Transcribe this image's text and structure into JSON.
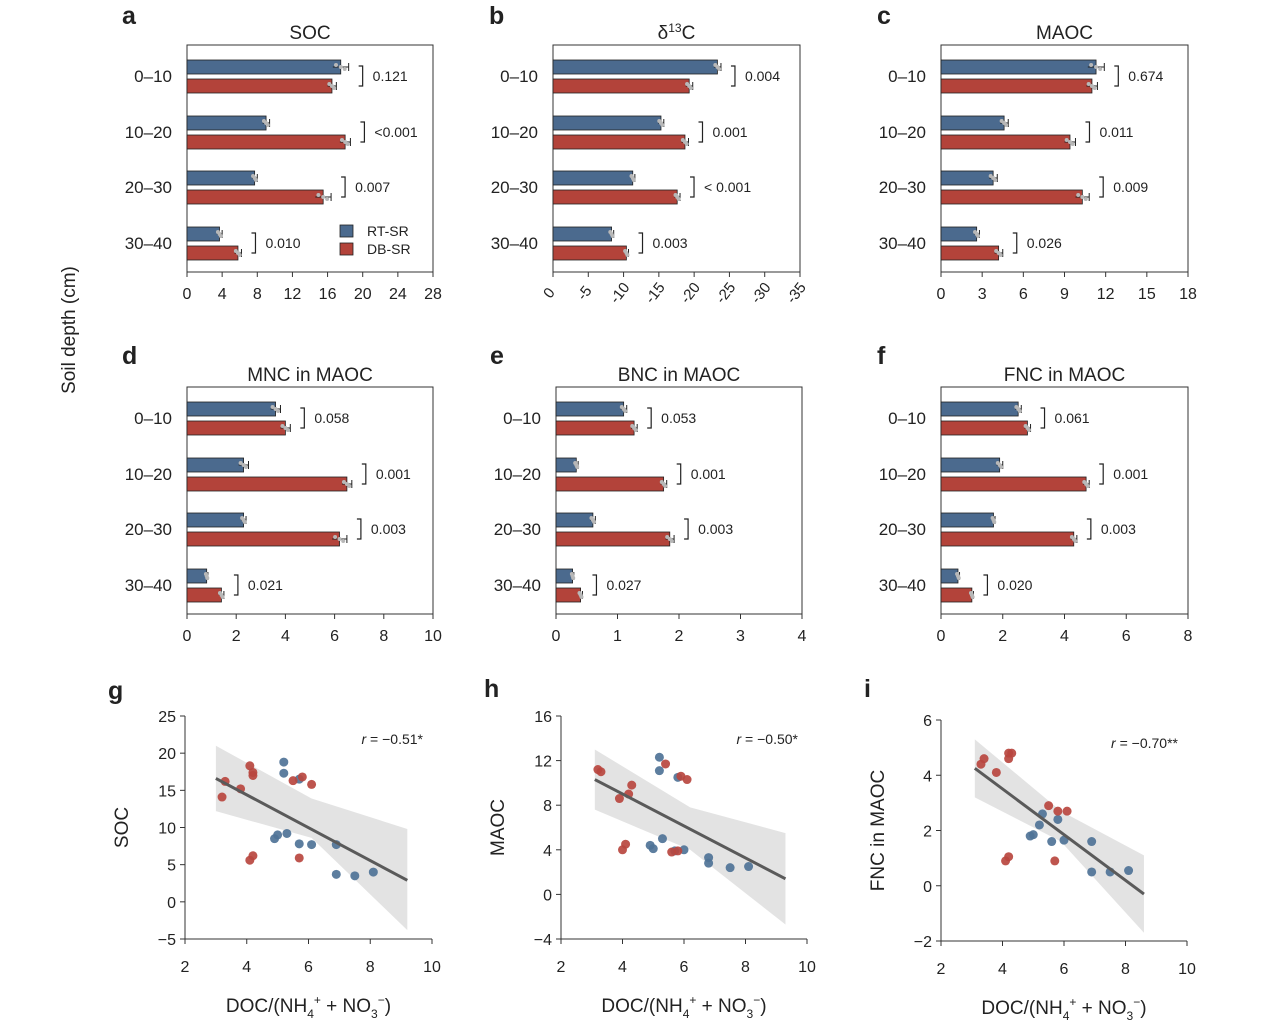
{
  "figure": {
    "y_axis_title": "Soil depth (cm)",
    "legend": [
      "RT-SR",
      "DB-SR"
    ],
    "colors": {
      "rt": "#4b6a8e",
      "db": "#b3433a",
      "rt_point": "#4f7397",
      "db_point": "#b9463f",
      "band": "#e3e3e3",
      "line": "#5a5a5a"
    }
  },
  "chart_data": [
    {
      "type": "bar",
      "panel": "a",
      "title": "SOC",
      "title_html": "SOC",
      "xlim": [
        0,
        28
      ],
      "xticks": [
        "0",
        "4",
        "8",
        "12",
        "16",
        "20",
        "24",
        "28"
      ],
      "rotated_ticks": false,
      "categories": [
        "0–10",
        "10–20",
        "20–30",
        "30–40"
      ],
      "series": [
        {
          "name": "RT-SR",
          "values": [
            17.5,
            9.0,
            7.7,
            3.7
          ],
          "errors": [
            0.9,
            0.4,
            0.3,
            0.3
          ]
        },
        {
          "name": "DB-SR",
          "values": [
            16.5,
            18.0,
            15.5,
            5.8
          ],
          "errors": [
            0.5,
            0.6,
            0.9,
            0.4
          ]
        }
      ],
      "p_values": [
        "0.121",
        "<0.001",
        "0.007",
        "0.010"
      ],
      "legend_location": "lower-right"
    },
    {
      "type": "bar",
      "panel": "b",
      "title": "δ13C",
      "title_html": "δ<tspan dy='-7' font-size='12'>13</tspan><tspan dy='7'>C</tspan>",
      "xlim": [
        0,
        -35
      ],
      "xticks": [
        "0",
        "-5",
        "-10",
        "-15",
        "-20",
        "-25",
        "-30",
        "-35"
      ],
      "rotated_ticks": true,
      "categories": [
        "0–10",
        "10–20",
        "20–30",
        "30–40"
      ],
      "series": [
        {
          "name": "RT-SR",
          "values": [
            -23.3,
            -15.3,
            -11.3,
            -8.3
          ],
          "errors": [
            0.5,
            0.4,
            0.3,
            0.3
          ]
        },
        {
          "name": "DB-SR",
          "values": [
            -19.3,
            -18.7,
            -17.6,
            -10.4
          ],
          "errors": [
            0.5,
            0.5,
            0.4,
            0.3
          ]
        }
      ],
      "p_values": [
        "0.004",
        "0.001",
        "< 0.001",
        "0.003"
      ]
    },
    {
      "type": "bar",
      "panel": "c",
      "title": "MAOC",
      "title_html": "MAOC",
      "xlim": [
        0,
        18
      ],
      "xticks": [
        "0",
        "3",
        "6",
        "9",
        "12",
        "15",
        "18"
      ],
      "rotated_ticks": false,
      "categories": [
        "0–10",
        "10–20",
        "20–30",
        "30–40"
      ],
      "series": [
        {
          "name": "RT-SR",
          "values": [
            11.3,
            4.6,
            3.8,
            2.6
          ],
          "errors": [
            0.6,
            0.3,
            0.3,
            0.2
          ]
        },
        {
          "name": "DB-SR",
          "values": [
            11.0,
            9.4,
            10.3,
            4.2
          ],
          "errors": [
            0.4,
            0.4,
            0.5,
            0.3
          ]
        }
      ],
      "p_values": [
        "0.674",
        "0.011",
        "0.009",
        "0.026"
      ]
    },
    {
      "type": "bar",
      "panel": "d",
      "title": "MNC in MAOC",
      "title_html": "MNC in MAOC",
      "xlim": [
        0,
        10
      ],
      "xticks": [
        "0",
        "2",
        "4",
        "6",
        "8",
        "10"
      ],
      "rotated_ticks": false,
      "categories": [
        "0–10",
        "10–20",
        "20–30",
        "30–40"
      ],
      "series": [
        {
          "name": "RT-SR",
          "values": [
            3.6,
            2.3,
            2.3,
            0.8
          ],
          "errors": [
            0.2,
            0.2,
            0.1,
            0.05
          ]
        },
        {
          "name": "DB-SR",
          "values": [
            4.0,
            6.5,
            6.2,
            1.4
          ],
          "errors": [
            0.2,
            0.2,
            0.3,
            0.1
          ]
        }
      ],
      "p_values": [
        "0.058",
        "0.001",
        "0.003",
        "0.021"
      ]
    },
    {
      "type": "bar",
      "panel": "e",
      "title": "BNC in MAOC",
      "title_html": "BNC in MAOC",
      "xlim": [
        0,
        4
      ],
      "xticks": [
        "0",
        "1",
        "2",
        "3",
        "4"
      ],
      "rotated_ticks": false,
      "categories": [
        "0–10",
        "10–20",
        "20–30",
        "30–40"
      ],
      "series": [
        {
          "name": "RT-SR",
          "values": [
            1.1,
            0.33,
            0.6,
            0.27
          ],
          "errors": [
            0.05,
            0.03,
            0.04,
            0.02
          ]
        },
        {
          "name": "DB-SR",
          "values": [
            1.27,
            1.75,
            1.85,
            0.4
          ],
          "errors": [
            0.05,
            0.05,
            0.07,
            0.03
          ]
        }
      ],
      "p_values": [
        "0.053",
        "0.001",
        "0.003",
        "0.027"
      ]
    },
    {
      "type": "bar",
      "panel": "f",
      "title": "FNC in MAOC",
      "title_html": "FNC in MAOC",
      "xlim": [
        0,
        8
      ],
      "xticks": [
        "0",
        "2",
        "4",
        "6",
        "8"
      ],
      "rotated_ticks": false,
      "categories": [
        "0–10",
        "10–20",
        "20–30",
        "30–40"
      ],
      "series": [
        {
          "name": "RT-SR",
          "values": [
            2.5,
            1.9,
            1.7,
            0.55
          ],
          "errors": [
            0.1,
            0.1,
            0.05,
            0.05
          ]
        },
        {
          "name": "DB-SR",
          "values": [
            2.8,
            4.7,
            4.3,
            1.0
          ],
          "errors": [
            0.1,
            0.1,
            0.1,
            0.05
          ]
        }
      ],
      "p_values": [
        "0.061",
        "0.001",
        "0.003",
        "0.020"
      ]
    },
    {
      "type": "scatter",
      "panel": "g",
      "xlabel": "DOC/(NH4+ + NO3−)",
      "ylabel": "SOC",
      "r_label": "r = −0.51*",
      "xlim": [
        2,
        10
      ],
      "ylim": [
        -5,
        25
      ],
      "xticks": [
        "2",
        "4",
        "6",
        "8",
        "10"
      ],
      "yticks": [
        "−5",
        "0",
        "5",
        "10",
        "15",
        "20",
        "25"
      ],
      "rt_points": [
        [
          5.2,
          18.8
        ],
        [
          5.2,
          17.3
        ],
        [
          5.7,
          16.5
        ],
        [
          4.9,
          8.5
        ],
        [
          5.0,
          9.0
        ],
        [
          5.3,
          9.2
        ],
        [
          5.7,
          7.8
        ],
        [
          6.1,
          7.7
        ],
        [
          6.9,
          7.7
        ],
        [
          6.9,
          3.7
        ],
        [
          7.5,
          3.5
        ],
        [
          8.1,
          4.0
        ]
      ],
      "db_points": [
        [
          4.1,
          18.3
        ],
        [
          4.2,
          17.4
        ],
        [
          4.2,
          17.0
        ],
        [
          3.3,
          16.2
        ],
        [
          3.2,
          14.1
        ],
        [
          3.8,
          15.2
        ],
        [
          5.5,
          16.3
        ],
        [
          5.8,
          16.8
        ],
        [
          6.1,
          15.8
        ],
        [
          4.1,
          5.6
        ],
        [
          4.2,
          6.2
        ],
        [
          5.7,
          5.9
        ]
      ],
      "fit": [
        [
          3,
          16.6
        ],
        [
          9.2,
          2.9
        ]
      ],
      "band_upper": [
        [
          3,
          21
        ],
        [
          6.1,
          13.9
        ],
        [
          9.2,
          9.8
        ]
      ],
      "band_lower": [
        [
          3,
          12.2
        ],
        [
          6.1,
          8.6
        ],
        [
          9.2,
          -3.8
        ]
      ]
    },
    {
      "type": "scatter",
      "panel": "h",
      "xlabel": "DOC/(NH4+ + NO3−)",
      "ylabel": "MAOC",
      "r_label": "r = −0.50*",
      "xlim": [
        2,
        10
      ],
      "ylim": [
        -4,
        16
      ],
      "xticks": [
        "2",
        "4",
        "6",
        "8",
        "10"
      ],
      "yticks": [
        "−4",
        "0",
        "4",
        "8",
        "12",
        "16"
      ],
      "rt_points": [
        [
          5.2,
          12.3
        ],
        [
          5.2,
          11.1
        ],
        [
          5.8,
          10.5
        ],
        [
          5.3,
          5.0
        ],
        [
          4.9,
          4.4
        ],
        [
          5.0,
          4.1
        ],
        [
          5.7,
          3.9
        ],
        [
          6.0,
          4.0
        ],
        [
          6.8,
          3.3
        ],
        [
          6.8,
          2.8
        ],
        [
          7.5,
          2.4
        ],
        [
          8.1,
          2.5
        ]
      ],
      "db_points": [
        [
          3.3,
          11.0
        ],
        [
          3.2,
          11.2
        ],
        [
          4.3,
          9.8
        ],
        [
          4.2,
          9.0
        ],
        [
          3.9,
          8.6
        ],
        [
          5.4,
          11.7
        ],
        [
          5.9,
          10.6
        ],
        [
          6.1,
          10.3
        ],
        [
          4.1,
          4.5
        ],
        [
          4.0,
          4.0
        ],
        [
          5.6,
          3.8
        ],
        [
          5.8,
          3.9
        ]
      ],
      "fit": [
        [
          3.1,
          10.3
        ],
        [
          9.3,
          1.4
        ]
      ],
      "band_upper": [
        [
          3.1,
          13.0
        ],
        [
          6.2,
          7.8
        ],
        [
          9.3,
          5.5
        ]
      ],
      "band_lower": [
        [
          3.1,
          7.6
        ],
        [
          6.2,
          4.0
        ],
        [
          9.3,
          -2.7
        ]
      ]
    },
    {
      "type": "scatter",
      "panel": "i",
      "xlabel": "DOC/(NH4+ + NO3−)",
      "ylabel": "FNC in MAOC",
      "r_label": "r = −0.70**",
      "xlim": [
        2,
        10
      ],
      "ylim": [
        -2,
        6
      ],
      "xticks": [
        "2",
        "4",
        "6",
        "8",
        "10"
      ],
      "yticks": [
        "−2",
        "0",
        "2",
        "4",
        "6"
      ],
      "rt_points": [
        [
          5.3,
          2.6
        ],
        [
          5.2,
          2.2
        ],
        [
          5.8,
          2.4
        ],
        [
          4.9,
          1.8
        ],
        [
          5.0,
          1.85
        ],
        [
          5.6,
          1.6
        ],
        [
          6.0,
          1.65
        ],
        [
          6.9,
          1.6
        ],
        [
          6.9,
          0.5
        ],
        [
          7.5,
          0.5
        ],
        [
          8.1,
          0.55
        ]
      ],
      "db_points": [
        [
          4.2,
          4.8
        ],
        [
          4.3,
          4.8
        ],
        [
          4.2,
          4.6
        ],
        [
          3.3,
          4.4
        ],
        [
          3.4,
          4.6
        ],
        [
          3.8,
          4.1
        ],
        [
          5.5,
          2.9
        ],
        [
          5.8,
          2.7
        ],
        [
          6.1,
          2.7
        ],
        [
          4.1,
          0.9
        ],
        [
          4.2,
          1.05
        ],
        [
          5.7,
          0.9
        ]
      ],
      "fit": [
        [
          3.1,
          4.25
        ],
        [
          8.6,
          -0.3
        ]
      ],
      "band_upper": [
        [
          3.1,
          5.3
        ],
        [
          5.9,
          2.7
        ],
        [
          8.6,
          1.1
        ]
      ],
      "band_lower": [
        [
          3.1,
          3.2
        ],
        [
          5.9,
          1.6
        ],
        [
          8.6,
          -1.7
        ]
      ]
    }
  ]
}
